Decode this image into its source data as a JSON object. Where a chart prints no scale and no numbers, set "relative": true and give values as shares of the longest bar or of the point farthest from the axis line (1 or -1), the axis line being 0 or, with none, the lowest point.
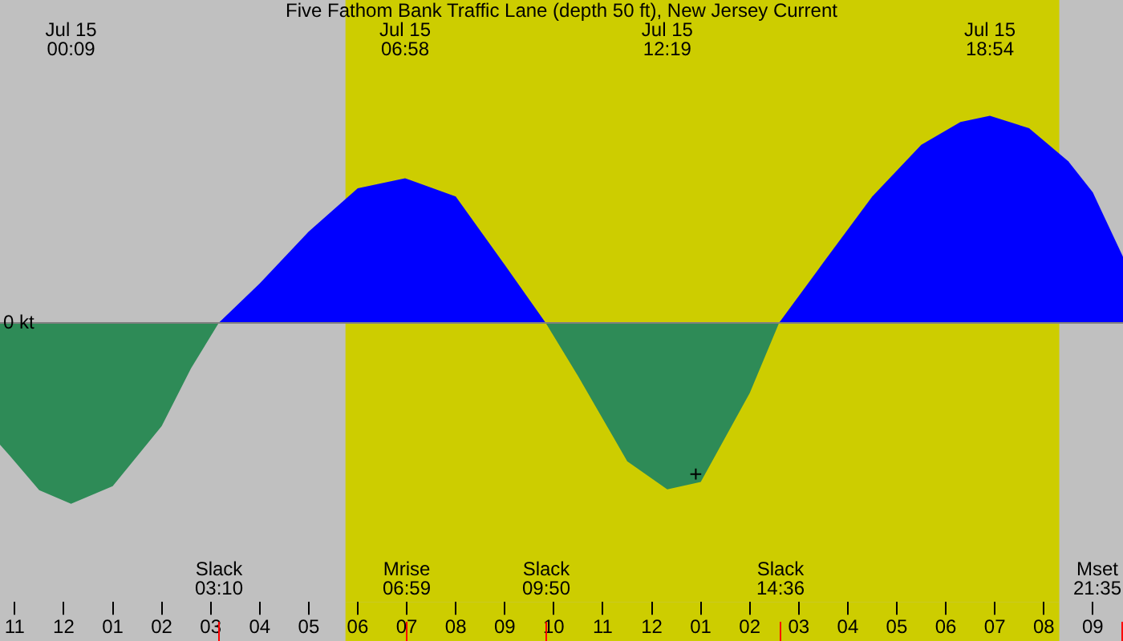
{
  "chart_data": {
    "type": "area",
    "title": "Five Fathom Bank Traffic Lane (depth 50 ft), New Jersey Current",
    "relative": true,
    "grid": false,
    "legend": false,
    "x": [
      "--07-14T22:42",
      "--07-14T22:54",
      "--07-14T23:30",
      "--07-15T00:09",
      "--07-15T01:00",
      "--07-15T02:00",
      "--07-15T02:36",
      "--07-15T03:10",
      "--07-15T04:00",
      "--07-15T05:00",
      "--07-15T06:00",
      "--07-15T06:58",
      "--07-15T08:00",
      "--07-15T09:00",
      "--07-15T09:50",
      "--07-15T10:30",
      "--07-15T11:30",
      "--07-15T12:19",
      "--07-15T13:00",
      "--07-15T14:00",
      "--07-15T14:36",
      "--07-15T15:30",
      "--07-15T16:30",
      "--07-15T17:30",
      "--07-15T18:18",
      "--07-15T18:54",
      "--07-15T19:42",
      "--07-15T20:30",
      "--07-15T21:00",
      "--07-15T21:37"
    ],
    "series": [
      {
        "color": "#0000ff",
        "values": [
          null,
          null,
          null,
          null,
          null,
          null,
          null,
          0,
          0.19,
          0.44,
          0.65,
          0.698,
          0.61,
          0.28,
          0,
          null,
          null,
          null,
          null,
          null,
          0,
          0.29,
          0.61,
          0.86,
          0.97,
          1,
          0.94,
          0.78,
          0.63,
          0.318
        ]
      },
      {
        "color": "#2e8b57",
        "values": [
          -0.59,
          -0.643,
          -0.81,
          -0.876,
          -0.79,
          -0.5,
          -0.22,
          0,
          null,
          null,
          null,
          null,
          null,
          null,
          0,
          -0.26,
          -0.67,
          -0.806,
          -0.77,
          -0.34,
          0,
          null,
          null,
          null,
          null,
          null,
          null,
          null,
          null,
          null
        ]
      }
    ],
    "xlim": [
      "--07-14T22:42",
      "--07-15T21:37"
    ],
    "xticks": [
      {
        "value": "--07-14T23:00",
        "label": "11"
      },
      {
        "value": "--07-15T00:00",
        "label": "12"
      },
      {
        "value": "--07-15T01:00",
        "label": "01"
      },
      {
        "value": "--07-15T02:00",
        "label": "02"
      },
      {
        "value": "--07-15T03:00",
        "label": "03"
      },
      {
        "value": "--07-15T04:00",
        "label": "04"
      },
      {
        "value": "--07-15T05:00",
        "label": "05"
      },
      {
        "value": "--07-15T06:00",
        "label": "06"
      },
      {
        "value": "--07-15T07:00",
        "label": "07"
      },
      {
        "value": "--07-15T08:00",
        "label": "08"
      },
      {
        "value": "--07-15T09:00",
        "label": "09"
      },
      {
        "value": "--07-15T10:00",
        "label": "10"
      },
      {
        "value": "--07-15T11:00",
        "label": "11"
      },
      {
        "value": "--07-15T12:00",
        "label": "12"
      },
      {
        "value": "--07-15T13:00",
        "label": "01"
      },
      {
        "value": "--07-15T14:00",
        "label": "02"
      },
      {
        "value": "--07-15T15:00",
        "label": "03"
      },
      {
        "value": "--07-15T16:00",
        "label": "04"
      },
      {
        "value": "--07-15T17:00",
        "label": "05"
      },
      {
        "value": "--07-15T18:00",
        "label": "06"
      },
      {
        "value": "--07-15T19:00",
        "label": "07"
      },
      {
        "value": "--07-15T20:00",
        "label": "08"
      },
      {
        "value": "--07-15T21:00",
        "label": "09"
      }
    ],
    "bands": [
      {
        "axis": "x",
        "from": "--07-15T05:45",
        "to": "--07-15T20:19",
        "color": "#cdcd00"
      }
    ],
    "ref_lines": [
      {
        "axis": "y",
        "value": 0,
        "label": "0 kt",
        "color": "#808080"
      },
      {
        "axis": "x",
        "value": "--07-15T03:10",
        "label": "Slack 03:10",
        "color": "#ff0000"
      },
      {
        "axis": "x",
        "value": "--07-15T06:59",
        "label": "Mrise 06:59",
        "color": "#ff0000"
      },
      {
        "axis": "x",
        "value": "--07-15T09:50",
        "label": "Slack 09:50",
        "color": "#ff0000"
      },
      {
        "axis": "x",
        "value": "--07-15T14:36",
        "label": "Slack 14:36",
        "color": "#ff0000"
      },
      {
        "axis": "x",
        "value": "--07-15T21:35",
        "label": "Mset 21:35",
        "color": "#ff0000"
      }
    ],
    "annotations": [
      "Jul 15 00:09",
      "Jul 15 06:58",
      "Jul 15 12:19",
      "Jul 15 18:54",
      {
        "text": "+",
        "x": "--07-15T12:54",
        "y": -0.74
      }
    ]
  }
}
